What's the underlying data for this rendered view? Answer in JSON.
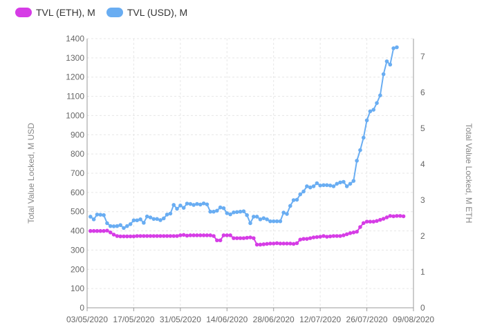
{
  "legend": [
    {
      "label": "TVL (ETH), M",
      "color": "#d63ce6"
    },
    {
      "label": "TVL (USD), M",
      "color": "#69adf2"
    }
  ],
  "chart_data": {
    "type": "line",
    "ylabel_left": "Total Value Locked, M USD",
    "ylabel_right": "Total Value Locked, M ETH",
    "y_left": {
      "min": 0,
      "max": 1400,
      "ticks": [
        0,
        100,
        200,
        300,
        400,
        500,
        600,
        700,
        800,
        900,
        1000,
        1100,
        1200,
        1300,
        1400
      ]
    },
    "y_right": {
      "min": 0,
      "max": 7.5,
      "ticks": [
        0,
        1,
        2,
        3,
        4,
        5,
        6,
        7
      ]
    },
    "x": {
      "start": "2020-05-03",
      "end": "2020-08-09",
      "ticks": [
        "03/05/2020",
        "17/05/2020",
        "31/05/2020",
        "14/06/2020",
        "28/06/2020",
        "12/07/2020",
        "26/07/2020",
        "09/08/2020"
      ]
    },
    "grid": true,
    "legend_position": "top-left",
    "series": [
      {
        "name": "TVL (ETH), M",
        "axis": "right",
        "color": "#d63ce6",
        "points": [
          [
            "2020-05-04",
            2.14
          ],
          [
            "2020-05-05",
            2.14
          ],
          [
            "2020-05-06",
            2.14
          ],
          [
            "2020-05-07",
            2.14
          ],
          [
            "2020-05-08",
            2.14
          ],
          [
            "2020-05-09",
            2.15
          ],
          [
            "2020-05-10",
            2.1
          ],
          [
            "2020-05-11",
            2.04
          ],
          [
            "2020-05-12",
            2.0
          ],
          [
            "2020-05-13",
            1.99
          ],
          [
            "2020-05-14",
            1.99
          ],
          [
            "2020-05-15",
            1.99
          ],
          [
            "2020-05-16",
            1.99
          ],
          [
            "2020-05-17",
            1.99
          ],
          [
            "2020-05-18",
            2.0
          ],
          [
            "2020-05-19",
            2.0
          ],
          [
            "2020-05-20",
            2.0
          ],
          [
            "2020-05-21",
            2.0
          ],
          [
            "2020-05-22",
            2.0
          ],
          [
            "2020-05-23",
            2.0
          ],
          [
            "2020-05-24",
            2.0
          ],
          [
            "2020-05-25",
            2.0
          ],
          [
            "2020-05-26",
            2.0
          ],
          [
            "2020-05-27",
            2.0
          ],
          [
            "2020-05-28",
            2.0
          ],
          [
            "2020-05-29",
            2.0
          ],
          [
            "2020-05-30",
            2.0
          ],
          [
            "2020-05-31",
            2.02
          ],
          [
            "2020-06-01",
            2.03
          ],
          [
            "2020-06-02",
            2.01
          ],
          [
            "2020-06-03",
            2.02
          ],
          [
            "2020-06-04",
            2.02
          ],
          [
            "2020-06-05",
            2.02
          ],
          [
            "2020-06-06",
            2.02
          ],
          [
            "2020-06-07",
            2.02
          ],
          [
            "2020-06-08",
            2.02
          ],
          [
            "2020-06-09",
            2.02
          ],
          [
            "2020-06-10",
            2.0
          ],
          [
            "2020-06-11",
            1.88
          ],
          [
            "2020-06-12",
            1.88
          ],
          [
            "2020-06-13",
            2.02
          ],
          [
            "2020-06-14",
            2.02
          ],
          [
            "2020-06-15",
            2.02
          ],
          [
            "2020-06-16",
            1.94
          ],
          [
            "2020-06-17",
            1.94
          ],
          [
            "2020-06-18",
            1.94
          ],
          [
            "2020-06-19",
            1.94
          ],
          [
            "2020-06-20",
            1.95
          ],
          [
            "2020-06-21",
            1.96
          ],
          [
            "2020-06-22",
            1.94
          ],
          [
            "2020-06-23",
            1.76
          ],
          [
            "2020-06-24",
            1.76
          ],
          [
            "2020-06-25",
            1.77
          ],
          [
            "2020-06-26",
            1.78
          ],
          [
            "2020-06-27",
            1.79
          ],
          [
            "2020-06-28",
            1.79
          ],
          [
            "2020-06-29",
            1.8
          ],
          [
            "2020-06-30",
            1.79
          ],
          [
            "2020-07-01",
            1.79
          ],
          [
            "2020-07-02",
            1.79
          ],
          [
            "2020-07-03",
            1.79
          ],
          [
            "2020-07-04",
            1.78
          ],
          [
            "2020-07-05",
            1.8
          ],
          [
            "2020-07-06",
            1.9
          ],
          [
            "2020-07-07",
            1.92
          ],
          [
            "2020-07-08",
            1.92
          ],
          [
            "2020-07-09",
            1.94
          ],
          [
            "2020-07-10",
            1.96
          ],
          [
            "2020-07-11",
            1.97
          ],
          [
            "2020-07-12",
            1.98
          ],
          [
            "2020-07-13",
            2.0
          ],
          [
            "2020-07-14",
            1.98
          ],
          [
            "2020-07-15",
            1.99
          ],
          [
            "2020-07-16",
            2.0
          ],
          [
            "2020-07-17",
            2.0
          ],
          [
            "2020-07-18",
            2.0
          ],
          [
            "2020-07-19",
            2.02
          ],
          [
            "2020-07-20",
            2.05
          ],
          [
            "2020-07-21",
            2.08
          ],
          [
            "2020-07-22",
            2.1
          ],
          [
            "2020-07-23",
            2.12
          ],
          [
            "2020-07-24",
            2.25
          ],
          [
            "2020-07-25",
            2.36
          ],
          [
            "2020-07-26",
            2.4
          ],
          [
            "2020-07-27",
            2.4
          ],
          [
            "2020-07-28",
            2.4
          ],
          [
            "2020-07-29",
            2.42
          ],
          [
            "2020-07-30",
            2.45
          ],
          [
            "2020-07-31",
            2.48
          ],
          [
            "2020-08-01",
            2.52
          ],
          [
            "2020-08-02",
            2.56
          ],
          [
            "2020-08-03",
            2.55
          ],
          [
            "2020-08-04",
            2.56
          ],
          [
            "2020-08-05",
            2.56
          ],
          [
            "2020-08-06",
            2.55
          ]
        ]
      },
      {
        "name": "TVL (USD), M",
        "axis": "left",
        "color": "#69adf2",
        "points": [
          [
            "2020-05-04",
            474
          ],
          [
            "2020-05-05",
            460
          ],
          [
            "2020-05-06",
            485
          ],
          [
            "2020-05-07",
            484
          ],
          [
            "2020-05-08",
            482
          ],
          [
            "2020-05-09",
            440
          ],
          [
            "2020-05-10",
            425
          ],
          [
            "2020-05-11",
            424
          ],
          [
            "2020-05-12",
            425
          ],
          [
            "2020-05-13",
            430
          ],
          [
            "2020-05-14",
            415
          ],
          [
            "2020-05-15",
            425
          ],
          [
            "2020-05-16",
            435
          ],
          [
            "2020-05-17",
            455
          ],
          [
            "2020-05-18",
            455
          ],
          [
            "2020-05-19",
            460
          ],
          [
            "2020-05-20",
            442
          ],
          [
            "2020-05-21",
            475
          ],
          [
            "2020-05-22",
            470
          ],
          [
            "2020-05-23",
            462
          ],
          [
            "2020-05-24",
            462
          ],
          [
            "2020-05-25",
            456
          ],
          [
            "2020-05-26",
            465
          ],
          [
            "2020-05-27",
            485
          ],
          [
            "2020-05-28",
            490
          ],
          [
            "2020-05-29",
            535
          ],
          [
            "2020-05-30",
            515
          ],
          [
            "2020-05-31",
            532
          ],
          [
            "2020-06-01",
            520
          ],
          [
            "2020-06-02",
            542
          ],
          [
            "2020-06-03",
            540
          ],
          [
            "2020-06-04",
            535
          ],
          [
            "2020-06-05",
            540
          ],
          [
            "2020-06-06",
            537
          ],
          [
            "2020-06-07",
            543
          ],
          [
            "2020-06-08",
            538
          ],
          [
            "2020-06-09",
            500
          ],
          [
            "2020-06-10",
            500
          ],
          [
            "2020-06-11",
            505
          ],
          [
            "2020-06-12",
            522
          ],
          [
            "2020-06-13",
            518
          ],
          [
            "2020-06-14",
            492
          ],
          [
            "2020-06-15",
            486
          ],
          [
            "2020-06-16",
            496
          ],
          [
            "2020-06-17",
            498
          ],
          [
            "2020-06-18",
            500
          ],
          [
            "2020-06-19",
            502
          ],
          [
            "2020-06-20",
            482
          ],
          [
            "2020-06-21",
            440
          ],
          [
            "2020-06-22",
            474
          ],
          [
            "2020-06-23",
            474
          ],
          [
            "2020-06-24",
            460
          ],
          [
            "2020-06-25",
            466
          ],
          [
            "2020-06-26",
            460
          ],
          [
            "2020-06-27",
            450
          ],
          [
            "2020-06-28",
            450
          ],
          [
            "2020-06-29",
            450
          ],
          [
            "2020-06-30",
            450
          ],
          [
            "2020-07-01",
            495
          ],
          [
            "2020-07-02",
            488
          ],
          [
            "2020-07-03",
            530
          ],
          [
            "2020-07-04",
            560
          ],
          [
            "2020-07-05",
            562
          ],
          [
            "2020-07-06",
            590
          ],
          [
            "2020-07-07",
            605
          ],
          [
            "2020-07-08",
            632
          ],
          [
            "2020-07-09",
            626
          ],
          [
            "2020-07-10",
            632
          ],
          [
            "2020-07-11",
            648
          ],
          [
            "2020-07-12",
            636
          ],
          [
            "2020-07-13",
            638
          ],
          [
            "2020-07-14",
            638
          ],
          [
            "2020-07-15",
            636
          ],
          [
            "2020-07-16",
            632
          ],
          [
            "2020-07-17",
            645
          ],
          [
            "2020-07-18",
            652
          ],
          [
            "2020-07-19",
            655
          ],
          [
            "2020-07-20",
            632
          ],
          [
            "2020-07-21",
            645
          ],
          [
            "2020-07-22",
            660
          ],
          [
            "2020-07-23",
            765
          ],
          [
            "2020-07-24",
            820
          ],
          [
            "2020-07-25",
            885
          ],
          [
            "2020-07-26",
            975
          ],
          [
            "2020-07-27",
            1022
          ],
          [
            "2020-07-28",
            1030
          ],
          [
            "2020-07-29",
            1065
          ],
          [
            "2020-07-30",
            1105
          ],
          [
            "2020-07-31",
            1215
          ],
          [
            "2020-08-01",
            1282
          ],
          [
            "2020-08-02",
            1265
          ],
          [
            "2020-08-03",
            1350
          ],
          [
            "2020-08-04",
            1355
          ]
        ]
      }
    ]
  }
}
